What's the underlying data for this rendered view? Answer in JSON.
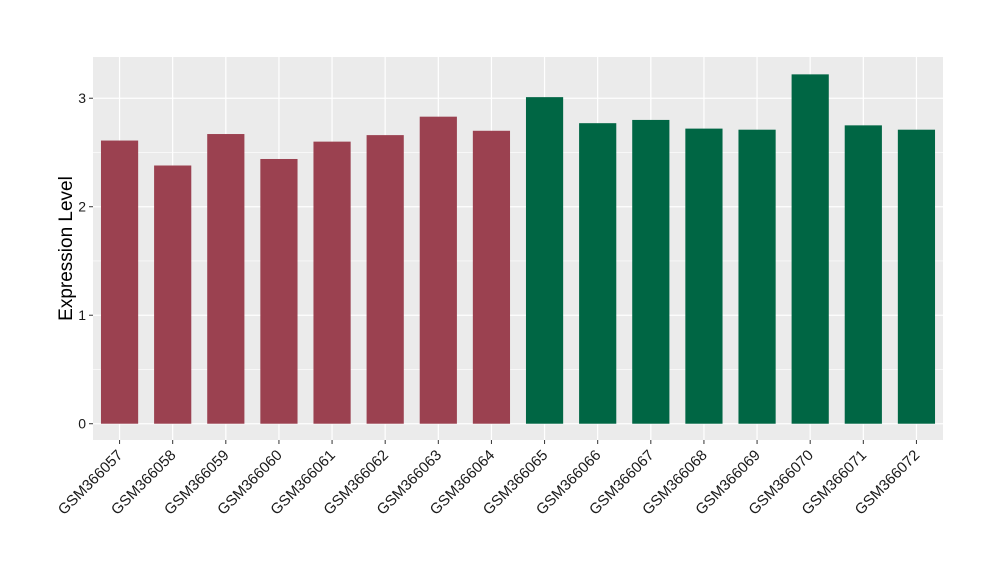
{
  "chart_data": {
    "type": "bar",
    "title": "",
    "xlabel": "",
    "ylabel": "Expression Level",
    "ylim": [
      -0.15,
      3.38
    ],
    "yticks": [
      0,
      1,
      2,
      3
    ],
    "grid": true,
    "categories": [
      "GSM366057",
      "GSM366058",
      "GSM366059",
      "GSM366060",
      "GSM366061",
      "GSM366062",
      "GSM366063",
      "GSM366064",
      "GSM366065",
      "GSM366066",
      "GSM366067",
      "GSM366068",
      "GSM366069",
      "GSM366070",
      "GSM366071",
      "GSM366072"
    ],
    "values": [
      2.61,
      2.38,
      2.67,
      2.44,
      2.6,
      2.66,
      2.83,
      2.7,
      3.01,
      2.77,
      2.8,
      2.72,
      2.71,
      3.22,
      2.75,
      2.71
    ],
    "bar_colors": [
      "#9b4150",
      "#9b4150",
      "#9b4150",
      "#9b4150",
      "#9b4150",
      "#9b4150",
      "#9b4150",
      "#9b4150",
      "#006644",
      "#006644",
      "#006644",
      "#006644",
      "#006644",
      "#006644",
      "#006644",
      "#006644"
    ],
    "panel_background": "#ebebeb",
    "gridline_color": "#ffffff"
  }
}
